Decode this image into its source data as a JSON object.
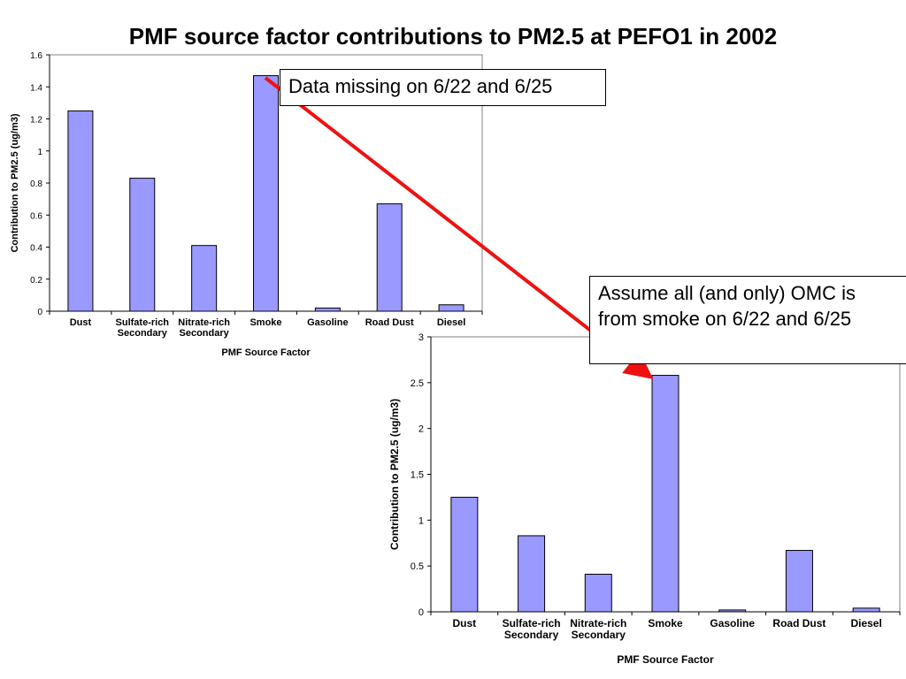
{
  "title": "PMF source factor contributions to PM2.5 at PEFO1 in 2002",
  "callouts": {
    "missing": "Data missing on 6/22 and 6/25",
    "assume": "Assume all (and only) OMC is from smoke on 6/22 and 6/25"
  },
  "colors": {
    "bar": "#9999ff",
    "bar_border": "#000000",
    "arrow": "#ee1111"
  },
  "chart_data": [
    {
      "type": "bar",
      "title": "",
      "xlabel": "PMF Source Factor",
      "ylabel": "Contribution to PM2.5 (ug/m3)",
      "categories": [
        "Dust",
        "Sulfate-rich\nSecondary",
        "Nitrate-rich\nSecondary",
        "Smoke",
        "Gasoline",
        "Road Dust",
        "Diesel"
      ],
      "values": [
        1.25,
        0.83,
        0.41,
        1.47,
        0.02,
        0.67,
        0.04
      ],
      "ylim": [
        0,
        1.6
      ],
      "yticks": [
        "0",
        "0.2",
        "0.4",
        "0.6",
        "0.8",
        "1",
        "1.2",
        "1.4",
        "1.6"
      ],
      "grid": false,
      "legend": "none"
    },
    {
      "type": "bar",
      "title": "",
      "xlabel": "PMF Source Factor",
      "ylabel": "Contribution to PM2.5 (ug/m3)",
      "categories": [
        "Dust",
        "Sulfate-rich\nSecondary",
        "Nitrate-rich\nSecondary",
        "Smoke",
        "Gasoline",
        "Road Dust",
        "Diesel"
      ],
      "values": [
        1.25,
        0.83,
        0.41,
        2.58,
        0.02,
        0.67,
        0.04
      ],
      "ylim": [
        0,
        3
      ],
      "yticks": [
        "0",
        "0.5",
        "1",
        "1.5",
        "2",
        "2.5",
        "3"
      ],
      "grid": false,
      "legend": "none"
    }
  ]
}
